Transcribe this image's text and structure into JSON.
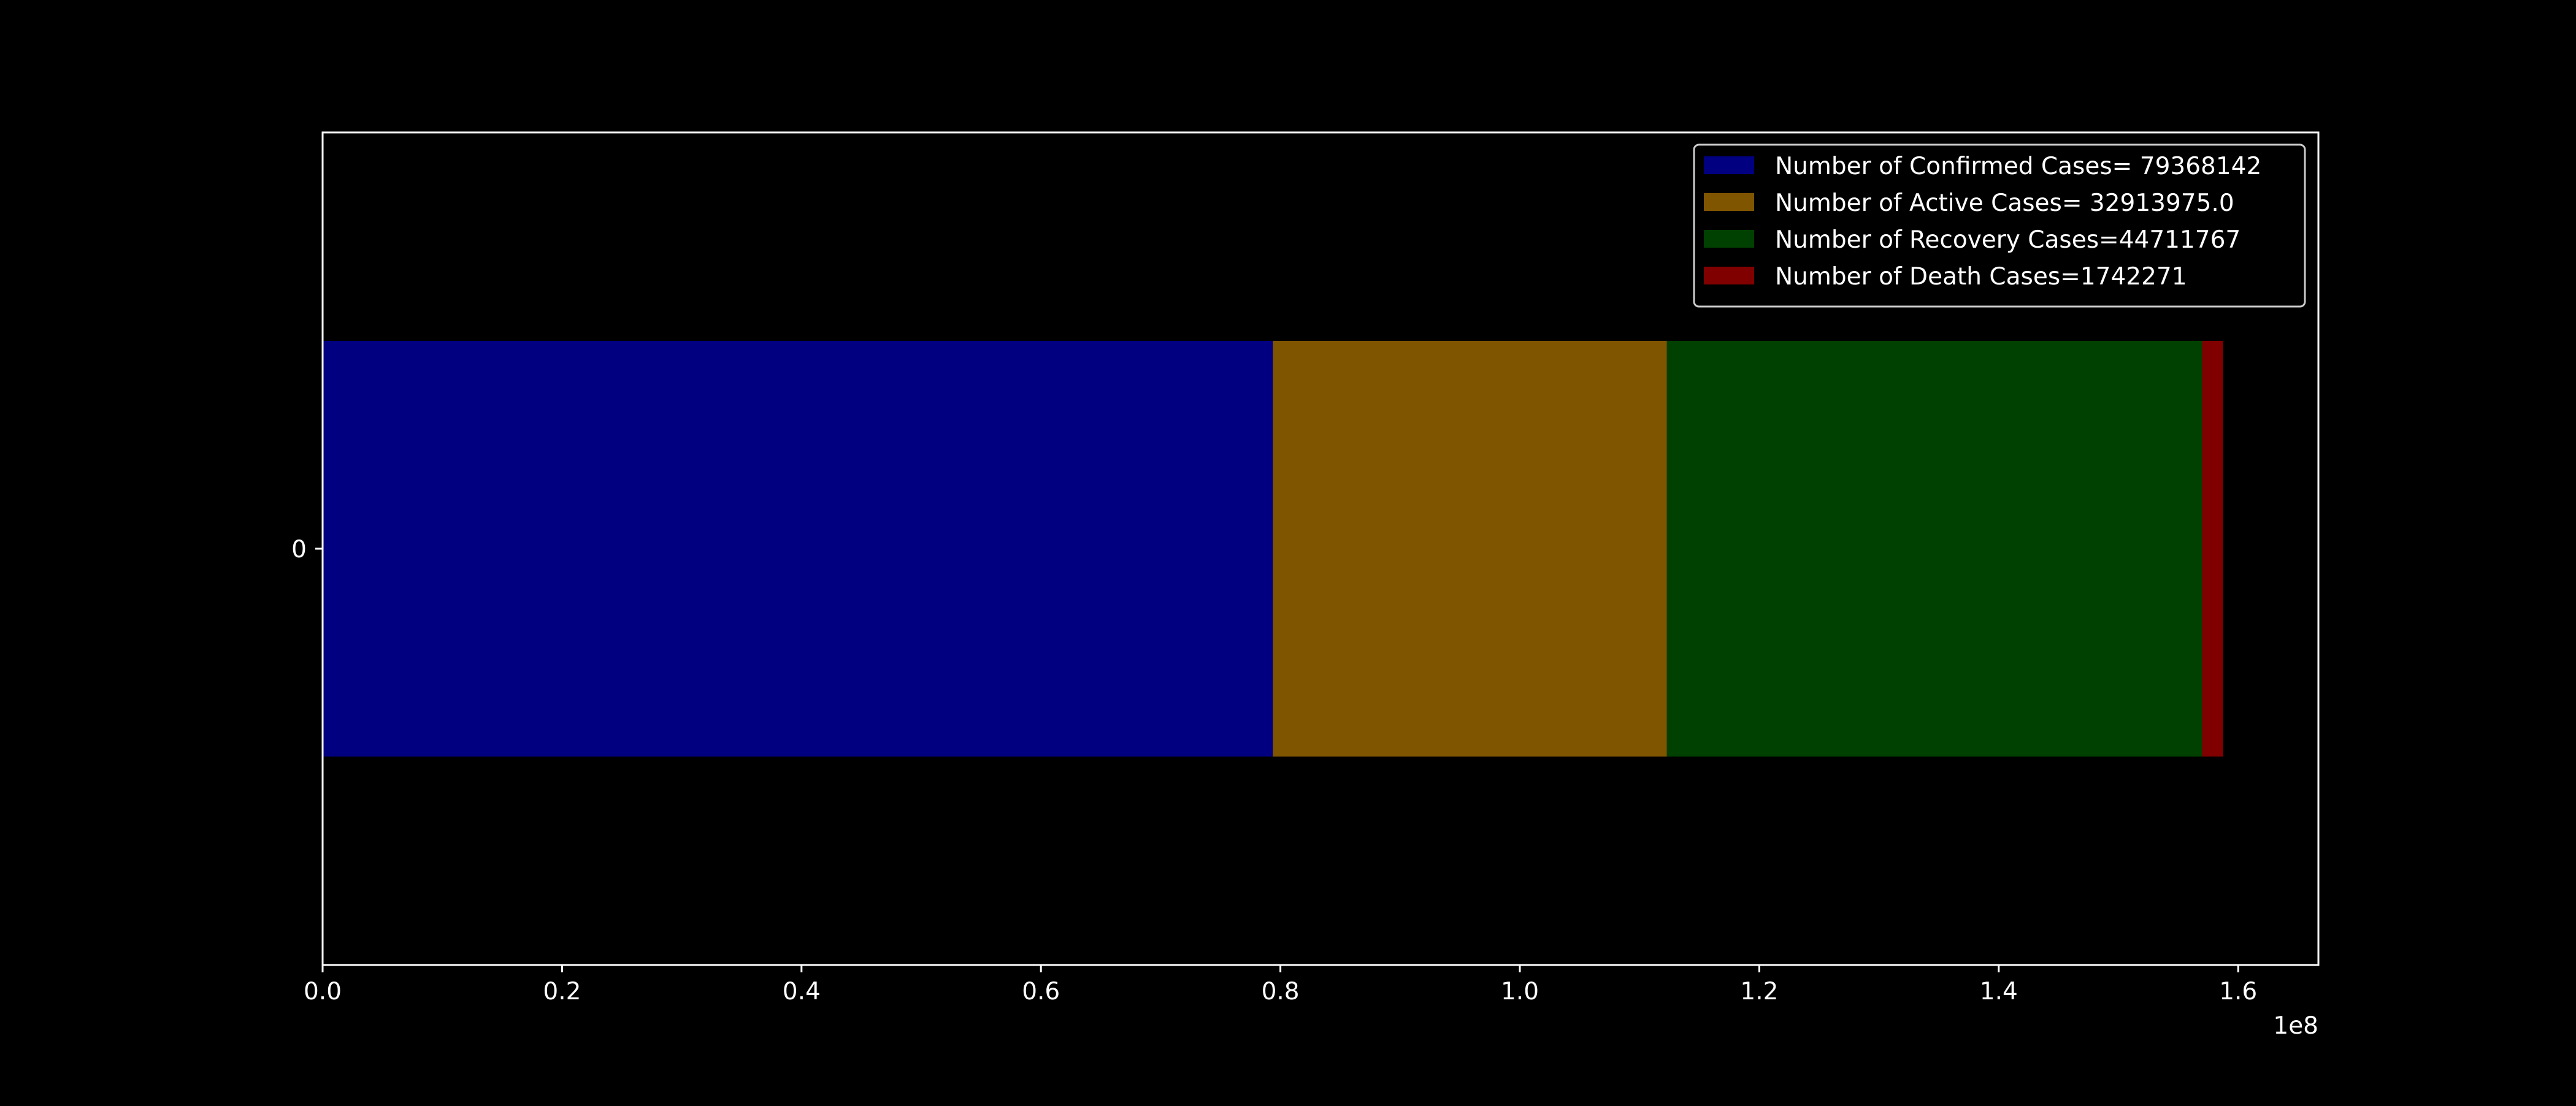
{
  "chart_data": {
    "type": "bar",
    "orientation": "horizontal",
    "stacked": true,
    "categories": [
      "0"
    ],
    "series": [
      {
        "name": "Number of Confirmed Cases= 79368142",
        "values": [
          79368142
        ],
        "color": "#000080"
      },
      {
        "name": "Number of Active Cases= 32913975.0",
        "values": [
          32913975.0
        ],
        "color": "#805500"
      },
      {
        "name": "Number of Recovery Cases=44711767",
        "values": [
          44711767
        ],
        "color": "#004000"
      },
      {
        "name": "Number of Death Cases=1742271",
        "values": [
          1742271
        ],
        "color": "#800000"
      }
    ],
    "xlim": [
      0,
      166700000
    ],
    "xticks": [
      0,
      20000000,
      40000000,
      60000000,
      80000000,
      100000000,
      120000000,
      140000000,
      160000000
    ],
    "xtick_labels": [
      "0.0",
      "0.2",
      "0.4",
      "0.6",
      "0.8",
      "1.0",
      "1.2",
      "1.4",
      "1.6"
    ],
    "x_offset_label": "1e8",
    "title": "",
    "xlabel": "",
    "ylabel": "",
    "grid": false,
    "legend_position": "top-right",
    "colors": {
      "background": "#000000",
      "axes": "#ffffff",
      "text": "#ffffff"
    }
  }
}
